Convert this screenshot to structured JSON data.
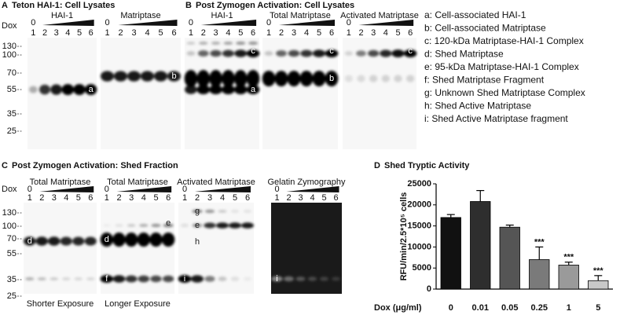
{
  "panel_a": {
    "letter": "A",
    "title": "Teton HAI-1: Cell Lysates",
    "dox": "Dox",
    "mw": [
      "130",
      "100",
      "70",
      "55",
      "35",
      "25"
    ],
    "blots": [
      {
        "title": "HAI-1",
        "zero": "0",
        "lanes": [
          "1",
          "2",
          "3",
          "4",
          "5",
          "6"
        ],
        "bands": [
          "a"
        ]
      },
      {
        "title": "Matriptase",
        "zero": "0",
        "lanes": [
          "1",
          "2",
          "3",
          "4",
          "5",
          "6"
        ],
        "bands": [
          "b"
        ]
      }
    ]
  },
  "panel_b": {
    "letter": "B",
    "title": "Post Zymogen Activation: Cell Lysates",
    "blots": [
      {
        "title": "HAI-1",
        "zero": "0",
        "lanes": [
          "1",
          "2",
          "3",
          "4",
          "5",
          "6"
        ],
        "bands": [
          "c",
          "a"
        ]
      },
      {
        "title": "Total Matriptase",
        "zero": "0",
        "lanes": [
          "1",
          "2",
          "3",
          "4",
          "5",
          "6"
        ],
        "bands": [
          "c",
          "b"
        ]
      },
      {
        "title": "Activated Matriptase",
        "zero": "0",
        "lanes": [
          "1",
          "2",
          "3",
          "4",
          "5",
          "6"
        ],
        "bands": [
          "c"
        ]
      }
    ]
  },
  "legend": [
    "a: Cell-associated HAI-1",
    "b: Cell-associated Matriptase",
    "c: 120-kDa Matriptase-HAI-1 Complex",
    "d: Shed Matriptase",
    "e: 95-kDa Matriptase-HAI-1 Complex",
    "f: Shed Matriptase Fragment",
    "g: Unknown Shed Matriptase Complex",
    "h: Shed Active Matriptase",
    "i: Shed Active Matriptase fragment"
  ],
  "panel_c": {
    "letter": "C",
    "title": "Post Zymogen Activation: Shed Fraction",
    "dox": "Dox",
    "mw": [
      "130",
      "100",
      "70",
      "55",
      "35",
      "25"
    ],
    "blots": [
      {
        "title": "Total Matriptase",
        "zero": "0",
        "lanes": [
          "1",
          "2",
          "3",
          "4",
          "5",
          "6"
        ],
        "bands": [
          "d",
          "f"
        ],
        "caption": "Shorter Exposure"
      },
      {
        "title": "Total Matriptase",
        "zero": "0",
        "lanes": [
          "1",
          "2",
          "3",
          "4",
          "5",
          "6"
        ],
        "bands": [
          "d",
          "e",
          "f"
        ],
        "caption": "Longer Exposure"
      },
      {
        "title": "Activated Matriptase",
        "zero": "0",
        "lanes": [
          "1",
          "2",
          "3",
          "4",
          "5",
          "6"
        ],
        "bands": [
          "g",
          "e",
          "h",
          "i"
        ]
      },
      {
        "title": "Gelatin Zymography",
        "zero": "0",
        "lanes": [
          "1",
          "2",
          "3",
          "4",
          "5",
          "6"
        ],
        "bands": [
          "i"
        ]
      }
    ]
  },
  "chart_data": {
    "type": "bar",
    "panel_letter": "D",
    "title": "Shed Tryptic Activity",
    "x_label": "Dox (μg/ml)",
    "y_label": "RFU/min/2.5*10⁵ cells",
    "categories": [
      "0",
      "0.01",
      "0.05",
      "0.25",
      "1",
      "5"
    ],
    "values": [
      17000,
      20800,
      14700,
      7000,
      5700,
      2000
    ],
    "errors": [
      700,
      2600,
      500,
      3000,
      700,
      1200
    ],
    "annotations": [
      null,
      null,
      null,
      "***",
      "***",
      "***"
    ],
    "colors": [
      "#111111",
      "#2e2e2e",
      "#555555",
      "#7a7a7a",
      "#9a9a9a",
      "#c8c8c8"
    ],
    "ylim": [
      0,
      25000
    ],
    "yticks": [
      0,
      5000,
      10000,
      15000,
      20000,
      25000
    ]
  }
}
